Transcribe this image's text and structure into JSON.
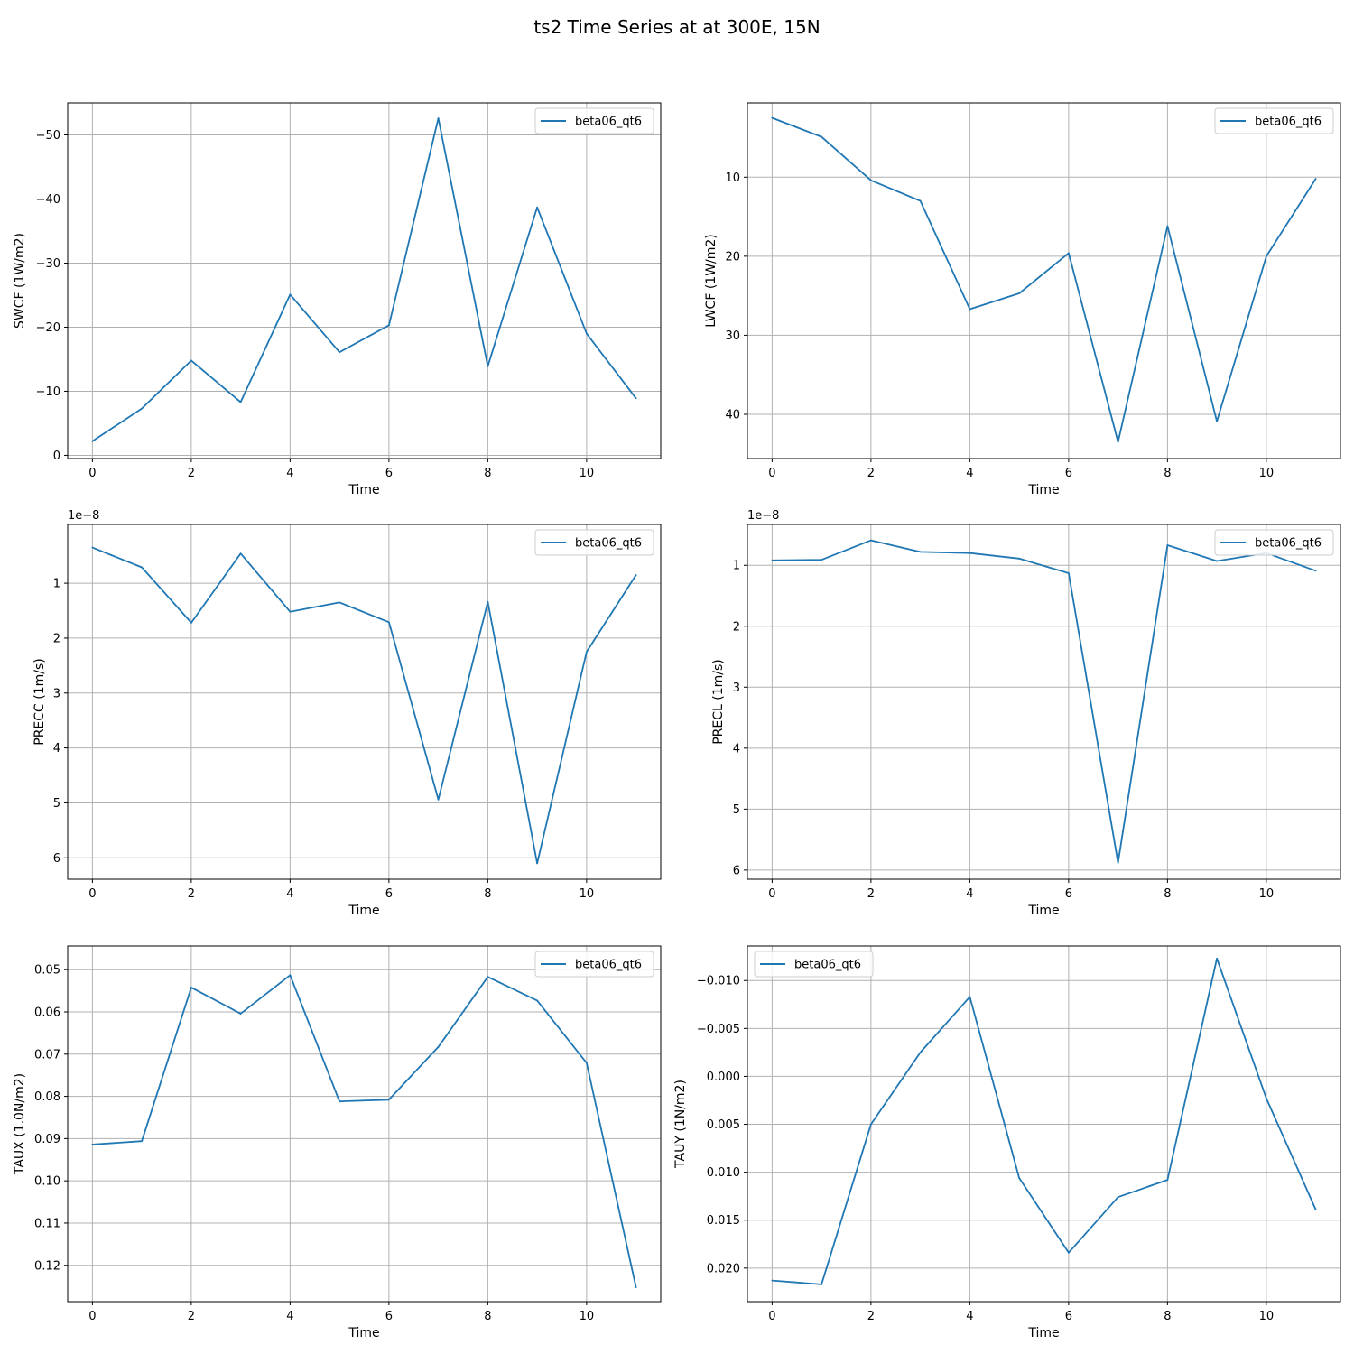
{
  "figure": {
    "title": "ts2 Time Series at at 300E, 15N",
    "line_color": "#1f77b4",
    "grid": true
  },
  "chart_data": [
    {
      "type": "line",
      "xlabel": "Time",
      "ylabel": "SWCF (1W/m2)",
      "x": [
        0,
        1,
        2,
        3,
        4,
        5,
        6,
        7,
        8,
        9,
        10,
        11
      ],
      "series": [
        {
          "name": "beta06_qt6",
          "values": [
            -2.2,
            -7.3,
            -14.8,
            -8.3,
            -25.1,
            -16.1,
            -20.3,
            -52.6,
            -13.9,
            -38.7,
            -19.0,
            -8.9
          ]
        }
      ],
      "xlim": [
        -0.5,
        11.5
      ],
      "ylim": [
        0.5,
        -55.0
      ],
      "y_inverted": true,
      "xticks": [
        0,
        2,
        4,
        6,
        8,
        10
      ],
      "yticks": [
        0,
        -10,
        -20,
        -30,
        -40,
        -50
      ],
      "ytick_labels": [
        "0",
        "−10",
        "−20",
        "−30",
        "−40",
        "−50"
      ],
      "offset_text": "",
      "legend_loc": "upper right"
    },
    {
      "type": "line",
      "xlabel": "Time",
      "ylabel": "LWCF (1W/m2)",
      "x": [
        0,
        1,
        2,
        3,
        4,
        5,
        6,
        7,
        8,
        9,
        10,
        11
      ],
      "series": [
        {
          "name": "beta06_qt6",
          "values": [
            2.5,
            4.9,
            10.4,
            13.0,
            26.7,
            24.7,
            19.6,
            43.5,
            16.2,
            40.9,
            20.0,
            10.2
          ]
        }
      ],
      "xlim": [
        -0.5,
        11.5
      ],
      "ylim": [
        45.6,
        0.6
      ],
      "y_inverted": true,
      "xticks": [
        0,
        2,
        4,
        6,
        8,
        10
      ],
      "yticks": [
        10,
        20,
        30,
        40
      ],
      "ytick_labels": [
        "10",
        "20",
        "30",
        "40"
      ],
      "offset_text": "",
      "legend_loc": "upper right"
    },
    {
      "type": "line",
      "xlabel": "Time",
      "ylabel": "PRECC (1m/s)",
      "x": [
        0,
        1,
        2,
        3,
        4,
        5,
        6,
        7,
        8,
        9,
        10,
        11
      ],
      "series": [
        {
          "name": "beta06_qt6",
          "values": [
            0.35,
            0.71,
            1.72,
            0.46,
            1.52,
            1.35,
            1.71,
            4.94,
            1.34,
            6.1,
            2.25,
            0.85
          ]
        }
      ],
      "xlim": [
        -0.5,
        11.5
      ],
      "ylim": [
        6.39,
        -0.07
      ],
      "y_inverted": true,
      "xticks": [
        0,
        2,
        4,
        6,
        8,
        10
      ],
      "yticks": [
        1,
        2,
        3,
        4,
        5,
        6
      ],
      "ytick_labels": [
        "1",
        "2",
        "3",
        "4",
        "5",
        "6"
      ],
      "offset_text": "1e−8",
      "legend_loc": "upper right"
    },
    {
      "type": "line",
      "xlabel": "Time",
      "ylabel": "PRECL (1m/s)",
      "x": [
        0,
        1,
        2,
        3,
        4,
        5,
        6,
        7,
        8,
        9,
        10,
        11
      ],
      "series": [
        {
          "name": "beta06_qt6",
          "values": [
            0.92,
            0.91,
            0.59,
            0.78,
            0.8,
            0.89,
            1.13,
            5.88,
            0.67,
            0.93,
            0.8,
            1.09
          ]
        }
      ],
      "xlim": [
        -0.5,
        11.5
      ],
      "ylim": [
        6.15,
        0.33
      ],
      "y_inverted": true,
      "xticks": [
        0,
        2,
        4,
        6,
        8,
        10
      ],
      "yticks": [
        1,
        2,
        3,
        4,
        5,
        6
      ],
      "ytick_labels": [
        "1",
        "2",
        "3",
        "4",
        "5",
        "6"
      ],
      "offset_text": "1e−8",
      "legend_loc": "upper right"
    },
    {
      "type": "line",
      "xlabel": "Time",
      "ylabel": "TAUX (1.0N/m2)",
      "x": [
        0,
        1,
        2,
        3,
        4,
        5,
        6,
        7,
        8,
        9,
        10,
        11
      ],
      "series": [
        {
          "name": "beta06_qt6",
          "values": [
            0.0914,
            0.0906,
            0.0542,
            0.0604,
            0.0513,
            0.0812,
            0.0808,
            0.0683,
            0.0517,
            0.0573,
            0.0721,
            0.1252
          ]
        }
      ],
      "xlim": [
        -0.5,
        11.5
      ],
      "ylim": [
        0.1286,
        0.0444
      ],
      "y_inverted": true,
      "xticks": [
        0,
        2,
        4,
        6,
        8,
        10
      ],
      "yticks": [
        0.05,
        0.06,
        0.07,
        0.08,
        0.09,
        0.1,
        0.11,
        0.12
      ],
      "ytick_labels": [
        "0.05",
        "0.06",
        "0.07",
        "0.08",
        "0.09",
        "0.10",
        "0.11",
        "0.12"
      ],
      "offset_text": "",
      "legend_loc": "upper right"
    },
    {
      "type": "line",
      "xlabel": "Time",
      "ylabel": "TAUY (1N/m2)",
      "x": [
        0,
        1,
        2,
        3,
        4,
        5,
        6,
        7,
        8,
        9,
        10,
        11
      ],
      "series": [
        {
          "name": "beta06_qt6",
          "values": [
            0.0213,
            0.0217,
            0.005,
            -0.0025,
            -0.0083,
            0.0106,
            0.0184,
            0.0126,
            0.0108,
            -0.0123,
            0.0023,
            0.0139
          ]
        }
      ],
      "xlim": [
        -0.5,
        11.5
      ],
      "ylim": [
        0.0235,
        -0.0136
      ],
      "y_inverted": true,
      "xticks": [
        0,
        2,
        4,
        6,
        8,
        10
      ],
      "yticks": [
        -0.01,
        -0.005,
        0,
        0.005,
        0.01,
        0.015,
        0.02
      ],
      "ytick_labels": [
        "−0.010",
        "−0.005",
        "0.000",
        "0.005",
        "0.010",
        "0.015",
        "0.020"
      ],
      "offset_text": "",
      "legend_loc": "upper left"
    }
  ]
}
